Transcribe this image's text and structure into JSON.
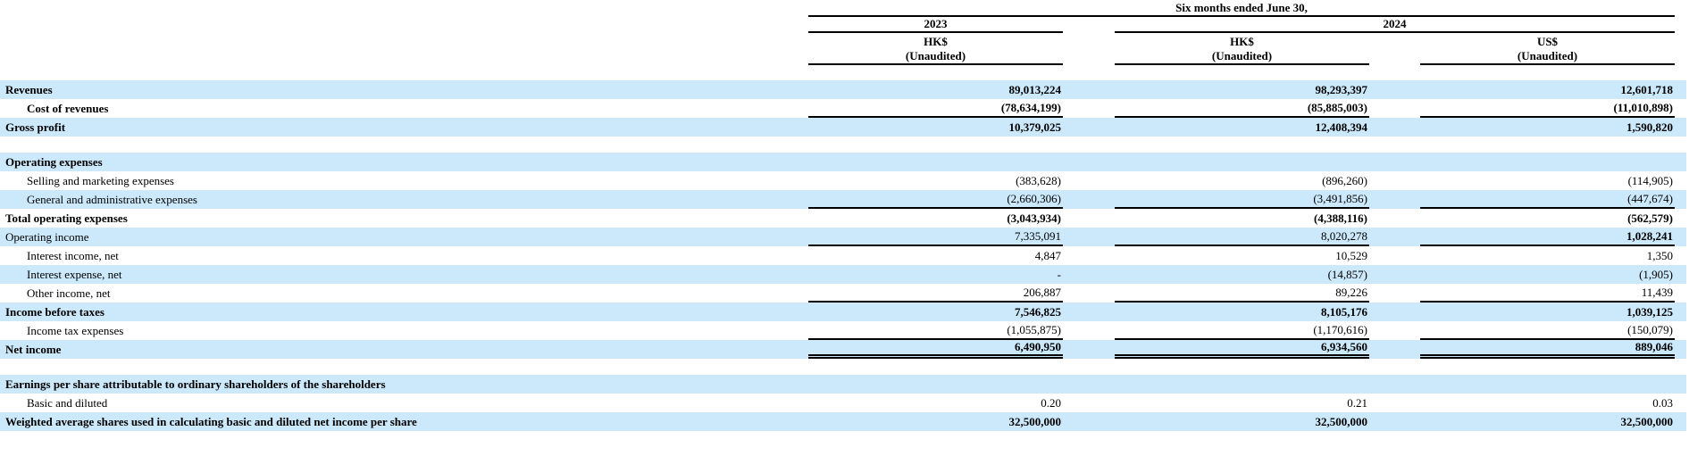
{
  "page": {
    "background": "#ffffff",
    "stripe_color": "#cce9fb",
    "rule_color": "#000000",
    "text_color": "#000000"
  },
  "header": {
    "period_title": "Six months ended June 30,",
    "year_left": "2023",
    "year_right": "2024",
    "columns": [
      {
        "currency": "HK$",
        "audit_note": "(Unaudited)"
      },
      {
        "currency": "HK$",
        "audit_note": "(Unaudited)"
      },
      {
        "currency": "US$",
        "audit_note": "(Unaudited)"
      }
    ]
  },
  "rows": [
    {
      "label": "Revenues",
      "indent": false,
      "bold": true,
      "shaded": true,
      "rule": "none",
      "values": [
        "89,013,224",
        "98,293,397",
        "12,601,718"
      ],
      "values_bold": [
        true,
        true,
        true
      ]
    },
    {
      "label": "Cost of revenues",
      "indent": true,
      "bold": true,
      "shaded": false,
      "rule": "single",
      "values": [
        "(78,634,199)",
        "(85,885,003)",
        "(11,010,898)"
      ],
      "values_bold": [
        true,
        true,
        true
      ]
    },
    {
      "label": "Gross profit",
      "indent": false,
      "bold": true,
      "shaded": true,
      "rule": "none",
      "values": [
        "10,379,025",
        "12,408,394",
        "1,590,820"
      ],
      "values_bold": [
        true,
        true,
        true
      ]
    },
    {
      "spacer": true
    },
    {
      "label": "Operating expenses",
      "indent": false,
      "bold": true,
      "shaded": true,
      "rule": "none",
      "values": [
        "",
        "",
        ""
      ],
      "values_bold": [
        false,
        false,
        false
      ]
    },
    {
      "label": "Selling and marketing expenses",
      "indent": true,
      "bold": false,
      "shaded": false,
      "rule": "none",
      "values": [
        "(383,628)",
        "(896,260)",
        "(114,905)"
      ],
      "values_bold": [
        false,
        false,
        false
      ]
    },
    {
      "label": "General and administrative expenses",
      "indent": true,
      "bold": false,
      "shaded": true,
      "rule": "single",
      "values": [
        "(2,660,306)",
        "(3,491,856)",
        "(447,674)"
      ],
      "values_bold": [
        false,
        false,
        false
      ]
    },
    {
      "label": "Total operating expenses",
      "indent": false,
      "bold": true,
      "shaded": false,
      "rule": "none",
      "values": [
        "(3,043,934)",
        "(4,388,116)",
        "(562,579)"
      ],
      "values_bold": [
        true,
        true,
        true
      ]
    },
    {
      "label": "Operating income",
      "indent": false,
      "bold": false,
      "shaded": true,
      "rule": "single",
      "values": [
        "7,335,091",
        "8,020,278",
        "1,028,241"
      ],
      "values_bold": [
        false,
        false,
        true
      ]
    },
    {
      "label": "Interest income, net",
      "indent": true,
      "bold": false,
      "shaded": false,
      "rule": "none",
      "values": [
        "4,847",
        "10,529",
        "1,350"
      ],
      "values_bold": [
        false,
        false,
        false
      ]
    },
    {
      "label": "Interest expense, net",
      "indent": true,
      "bold": false,
      "shaded": true,
      "rule": "none",
      "values": [
        "-",
        "(14,857)",
        "(1,905)"
      ],
      "values_bold": [
        false,
        false,
        false
      ]
    },
    {
      "label": "Other income, net",
      "indent": true,
      "bold": false,
      "shaded": false,
      "rule": "single",
      "values": [
        "206,887",
        "89,226",
        "11,439"
      ],
      "values_bold": [
        false,
        false,
        false
      ]
    },
    {
      "label": "Income before taxes",
      "indent": false,
      "bold": true,
      "shaded": true,
      "rule": "none",
      "values": [
        "7,546,825",
        "8,105,176",
        "1,039,125"
      ],
      "values_bold": [
        true,
        true,
        true
      ]
    },
    {
      "label": "Income tax expenses",
      "indent": true,
      "bold": false,
      "shaded": false,
      "rule": "single",
      "values": [
        "(1,055,875)",
        "(1,170,616)",
        "(150,079)"
      ],
      "values_bold": [
        false,
        false,
        false
      ]
    },
    {
      "label": "Net income",
      "indent": false,
      "bold": true,
      "shaded": true,
      "rule": "double",
      "values": [
        "6,490,950",
        "6,934,560",
        "889,046"
      ],
      "values_bold": [
        true,
        true,
        true
      ]
    },
    {
      "spacer": true
    },
    {
      "label": "Earnings per share attributable to ordinary shareholders of the shareholders",
      "indent": false,
      "bold": true,
      "shaded": true,
      "rule": "none",
      "values": [
        "",
        "",
        ""
      ],
      "values_bold": [
        false,
        false,
        false
      ]
    },
    {
      "label": "Basic and diluted",
      "indent": true,
      "bold": false,
      "shaded": false,
      "rule": "none",
      "values": [
        "0.20",
        "0.21",
        "0.03"
      ],
      "values_bold": [
        false,
        false,
        false
      ]
    },
    {
      "label": "Weighted average shares used in calculating basic and diluted net income per share",
      "indent": false,
      "bold": true,
      "shaded": true,
      "rule": "none",
      "values": [
        "32,500,000",
        "32,500,000",
        "32,500,000"
      ],
      "values_bold": [
        true,
        true,
        true
      ]
    }
  ]
}
